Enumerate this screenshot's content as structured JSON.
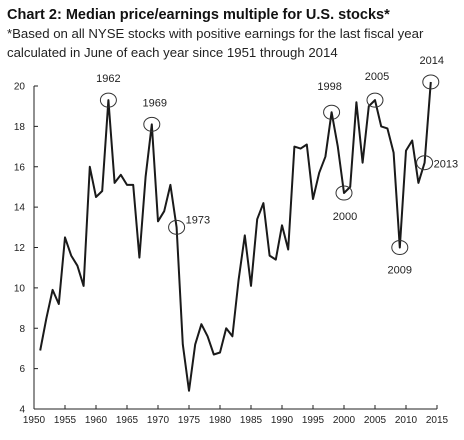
{
  "chart_data": {
    "type": "line",
    "title": "Chart 2: Median price/earnings multiple for U.S. stocks*",
    "subtitle": "*Based on all NYSE stocks with positive earnings for the last fiscal year calculated in June of each year since 1951 through 2014",
    "xlabel": "",
    "ylabel": "",
    "xlim": [
      1950,
      2015
    ],
    "ylim": [
      4,
      20
    ],
    "xticks": [
      1950,
      1955,
      1960,
      1965,
      1970,
      1975,
      1980,
      1985,
      1990,
      1995,
      2000,
      2005,
      2010,
      2015
    ],
    "yticks": [
      4,
      6,
      8,
      10,
      12,
      14,
      16,
      18,
      20
    ],
    "grid": false,
    "legend": "none",
    "series": [
      {
        "color": "#1a1a1a",
        "x": [
          1951,
          1952,
          1953,
          1954,
          1955,
          1956,
          1957,
          1958,
          1959,
          1960,
          1961,
          1962,
          1963,
          1964,
          1965,
          1966,
          1967,
          1968,
          1969,
          1970,
          1971,
          1972,
          1973,
          1974,
          1975,
          1976,
          1977,
          1978,
          1979,
          1980,
          1981,
          1982,
          1983,
          1984,
          1985,
          1986,
          1987,
          1988,
          1989,
          1990,
          1991,
          1992,
          1993,
          1994,
          1995,
          1996,
          1997,
          1998,
          1999,
          2000,
          2001,
          2002,
          2003,
          2004,
          2005,
          2006,
          2007,
          2008,
          2009,
          2010,
          2011,
          2012,
          2013,
          2014
        ],
        "y": [
          6.9,
          8.5,
          9.9,
          9.2,
          12.5,
          11.6,
          11.1,
          10.1,
          16.0,
          14.5,
          14.8,
          19.3,
          15.2,
          15.6,
          15.1,
          15.1,
          11.5,
          15.5,
          18.1,
          13.3,
          13.8,
          15.1,
          13.0,
          7.2,
          4.9,
          7.2,
          8.2,
          7.6,
          6.7,
          6.8,
          8.0,
          7.6,
          10.4,
          12.6,
          10.1,
          13.4,
          14.2,
          11.6,
          11.4,
          13.1,
          11.9,
          17.0,
          16.9,
          17.1,
          14.4,
          15.7,
          16.5,
          18.7,
          17.0,
          14.7,
          15.0,
          19.2,
          16.2,
          19.0,
          19.3,
          18.0,
          17.9,
          16.7,
          12.0,
          16.8,
          17.3,
          15.2,
          16.2,
          20.2
        ]
      }
    ],
    "annotations": [
      {
        "label": "1962",
        "x": 1962,
        "y": 19.3
      },
      {
        "label": "1969",
        "x": 1969,
        "y": 18.1
      },
      {
        "label": "1973",
        "x": 1973,
        "y": 13.0
      },
      {
        "label": "1998",
        "x": 1998,
        "y": 18.7
      },
      {
        "label": "2000",
        "x": 2000,
        "y": 14.7
      },
      {
        "label": "2005",
        "x": 2005,
        "y": 19.3
      },
      {
        "label": "2009",
        "x": 2009,
        "y": 12.0
      },
      {
        "label": "2013",
        "x": 2013,
        "y": 16.2
      },
      {
        "label": "2014",
        "x": 2014,
        "y": 20.2
      }
    ]
  }
}
